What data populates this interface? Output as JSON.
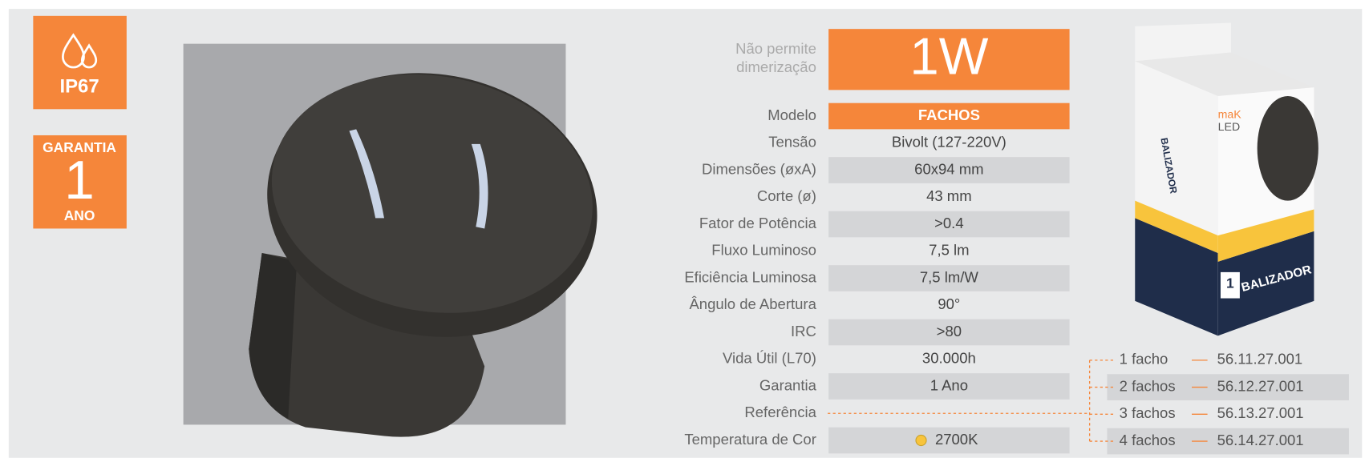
{
  "badges": {
    "ip": "IP67",
    "warranty": {
      "top": "GARANTIA",
      "number": "1",
      "bottom": "ANO"
    }
  },
  "power": {
    "note": [
      "Não permite",
      "dimerização"
    ],
    "value": "1W"
  },
  "specs": [
    {
      "label": "Modelo",
      "value": "FACHOS"
    },
    {
      "label": "Tensão",
      "value": "Bivolt (127-220V)"
    },
    {
      "label": "Dimensões (øxA)",
      "value": "60x94 mm"
    },
    {
      "label": "Corte (ø)",
      "value": "43 mm"
    },
    {
      "label": "Fator de Potência",
      "value": ">0.4"
    },
    {
      "label": "Fluxo Luminoso",
      "value": "7,5 lm"
    },
    {
      "label": "Eficiência Luminosa",
      "value": "7,5 lm/W"
    },
    {
      "label": "Ângulo de Abertura",
      "value": "90°"
    },
    {
      "label": "IRC",
      "value": ">80"
    },
    {
      "label": "Vida Útil (L70)",
      "value": "30.000h"
    },
    {
      "label": "Garantia",
      "value": "1 Ano"
    },
    {
      "label": "Referência",
      "value": null
    },
    {
      "label": "Temperatura de Cor",
      "value": "2700K"
    }
  ],
  "references": [
    {
      "name": "1 facho",
      "code": "56.11.27.001"
    },
    {
      "name": "2 fachos",
      "code": "56.12.27.001"
    },
    {
      "name": "3 fachos",
      "code": "56.13.27.001"
    },
    {
      "name": "4 fachos",
      "code": "56.14.27.001"
    }
  ],
  "box": {
    "brand": "maK",
    "brand2": "LED",
    "label": "BALIZADOR",
    "power": "1"
  }
}
